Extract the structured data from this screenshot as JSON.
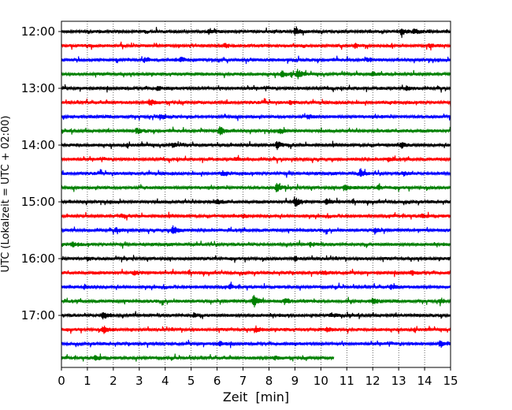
{
  "chart_data": {
    "type": "line",
    "subtype": "helicorder-seismogram",
    "title": "",
    "xlabel": "Zeit  [min]",
    "ylabel": "UTC (Lokalzeit = UTC + 02:00)",
    "xlim": [
      0,
      15
    ],
    "x_ticks": [
      0,
      1,
      2,
      3,
      4,
      5,
      6,
      7,
      8,
      9,
      10,
      11,
      12,
      13,
      14,
      15
    ],
    "x_tick_labels": [
      "0",
      "1",
      "2",
      "3",
      "4",
      "5",
      "6",
      "7",
      "8",
      "9",
      "10",
      "11",
      "12",
      "13",
      "14",
      "15"
    ],
    "y_tick_labels": [
      "12:00",
      "13:00",
      "14:00",
      "15:00",
      "16:00",
      "17:00"
    ],
    "trace_interval_min": 15,
    "vertical_grid": "dotted",
    "trace_colors": [
      "#000000",
      "#ff0000",
      "#0000ff",
      "#008000"
    ],
    "traces": [
      {
        "start": "12:00",
        "end_min": 15,
        "events": [
          [
            5.7,
            2.0
          ],
          [
            9.0,
            2.6
          ],
          [
            13.1,
            3.0
          ],
          [
            13.6,
            1.8
          ]
        ]
      },
      {
        "start": "12:15",
        "end_min": 15,
        "events": [
          [
            6.3,
            1.6
          ],
          [
            11.3,
            1.5
          ],
          [
            14.2,
            1.6
          ]
        ]
      },
      {
        "start": "12:30",
        "end_min": 15,
        "events": [
          [
            3.2,
            1.3
          ],
          [
            4.6,
            1.9
          ],
          [
            11.8,
            1.4
          ]
        ]
      },
      {
        "start": "12:45",
        "end_min": 15,
        "events": [
          [
            8.5,
            2.4
          ],
          [
            9.1,
            3.2
          ],
          [
            12.0,
            1.5
          ]
        ]
      },
      {
        "start": "13:00",
        "end_min": 15,
        "events": [
          [
            3.7,
            1.5
          ],
          [
            13.3,
            1.7
          ]
        ]
      },
      {
        "start": "13:15",
        "end_min": 15,
        "events": [
          [
            3.4,
            2.6
          ],
          [
            8.8,
            1.3
          ]
        ]
      },
      {
        "start": "13:30",
        "end_min": 15,
        "events": [
          [
            3.8,
            2.6
          ],
          [
            9.5,
            1.3
          ]
        ]
      },
      {
        "start": "13:45",
        "end_min": 15,
        "events": [
          [
            2.9,
            2.4
          ],
          [
            6.1,
            3.8
          ],
          [
            8.4,
            1.8
          ]
        ]
      },
      {
        "start": "14:00",
        "end_min": 15,
        "events": [
          [
            4.3,
            1.7
          ],
          [
            8.3,
            3.0
          ],
          [
            13.1,
            2.0
          ]
        ]
      },
      {
        "start": "14:15",
        "end_min": 15,
        "events": [
          [
            6.7,
            1.3
          ],
          [
            12.6,
            1.4
          ]
        ]
      },
      {
        "start": "14:30",
        "end_min": 15,
        "events": [
          [
            11.5,
            2.6
          ],
          [
            6.2,
            1.5
          ],
          [
            13.2,
            1.4
          ]
        ]
      },
      {
        "start": "14:45",
        "end_min": 15,
        "events": [
          [
            8.3,
            3.5
          ],
          [
            10.9,
            2.4
          ],
          [
            12.2,
            1.5
          ]
        ]
      },
      {
        "start": "15:00",
        "end_min": 15,
        "events": [
          [
            9.0,
            4.0
          ],
          [
            10.2,
            2.0
          ],
          [
            6.0,
            1.4
          ]
        ]
      },
      {
        "start": "15:15",
        "end_min": 15,
        "events": [
          [
            2.3,
            1.3
          ],
          [
            7.0,
            1.3
          ],
          [
            13.9,
            1.3
          ]
        ]
      },
      {
        "start": "15:30",
        "end_min": 15,
        "events": [
          [
            4.3,
            3.2
          ],
          [
            2.1,
            1.6
          ],
          [
            12.1,
            1.5
          ]
        ]
      },
      {
        "start": "15:45",
        "end_min": 15,
        "events": [
          [
            0.4,
            2.0
          ],
          [
            9.6,
            1.5
          ]
        ]
      },
      {
        "start": "16:00",
        "end_min": 15,
        "events": [
          [
            1.0,
            1.3
          ],
          [
            9.0,
            1.6
          ]
        ]
      },
      {
        "start": "16:15",
        "end_min": 15,
        "events": [
          [
            2.8,
            1.4
          ],
          [
            10.1,
            1.6
          ],
          [
            13.5,
            1.4
          ]
        ]
      },
      {
        "start": "16:30",
        "end_min": 15,
        "events": [
          [
            0.9,
            1.8
          ],
          [
            6.5,
            1.6
          ],
          [
            12.7,
            1.5
          ]
        ]
      },
      {
        "start": "16:45",
        "end_min": 15,
        "events": [
          [
            7.4,
            4.6
          ],
          [
            8.6,
            1.8
          ],
          [
            12.0,
            2.2
          ],
          [
            14.6,
            1.6
          ]
        ]
      },
      {
        "start": "17:00",
        "end_min": 15,
        "events": [
          [
            1.6,
            3.2
          ],
          [
            5.1,
            1.5
          ],
          [
            10.4,
            1.5
          ]
        ]
      },
      {
        "start": "17:15",
        "end_min": 15,
        "events": [
          [
            1.6,
            3.0
          ],
          [
            7.5,
            2.0
          ],
          [
            10.2,
            1.4
          ]
        ]
      },
      {
        "start": "17:30",
        "end_min": 15,
        "events": [
          [
            6.1,
            1.3
          ],
          [
            14.6,
            3.0
          ]
        ]
      },
      {
        "start": "17:45",
        "end_min": 10.5,
        "events": [
          [
            1.3,
            1.8
          ],
          [
            8.2,
            1.3
          ]
        ]
      }
    ]
  }
}
